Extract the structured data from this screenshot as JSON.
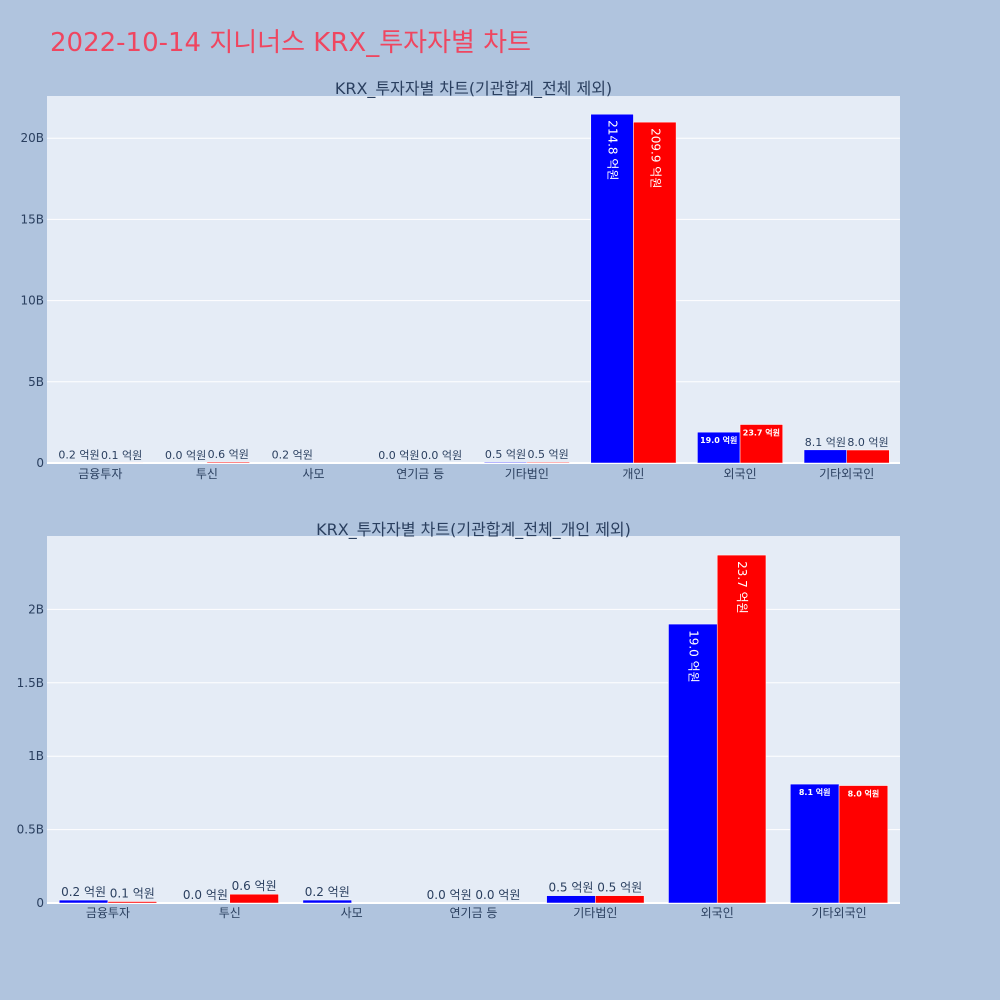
{
  "page_title": "2022-10-14 지니너스 KRX_투자자별 차트",
  "colors": {
    "background": "#b0c4de",
    "plot_bg": "#e5ecf6",
    "title_color": "#ef4660",
    "axis_text": "#2a3f5f",
    "series_1": "#0000ff",
    "series_2": "#ff0000"
  },
  "chart_data": [
    {
      "type": "bar",
      "title": "KRX_투자자별 차트(기관합계_전체 제외)",
      "categories": [
        "금융투자",
        "투신",
        "사모",
        "연기금 등",
        "기타법인",
        "개인",
        "외국인",
        "기타외국인"
      ],
      "series": [
        {
          "values": [
            20000000,
            0,
            20000000,
            0,
            50000000,
            21480000000,
            1900000000,
            810000000
          ],
          "labels": [
            "0.2 억원",
            "0.0 억원",
            "0.2 억원",
            "0.0 억원",
            "0.5 억원",
            "214.8 억원",
            "19.0 억원",
            "8.1 억원"
          ]
        },
        {
          "values": [
            10000000,
            60000000,
            0,
            0,
            50000000,
            20990000000,
            2370000000,
            800000000
          ],
          "labels": [
            "0.1 억원",
            "0.6 억원",
            "",
            "0.0 억원",
            "0.5 억원",
            "209.9 억원",
            "23.7 억원",
            "8.0 억원"
          ]
        }
      ],
      "ylim": [
        0,
        22600000000
      ],
      "yticks": [
        0,
        5000000000,
        10000000000,
        15000000000,
        20000000000
      ],
      "ytick_labels": [
        "0",
        "5B",
        "10B",
        "15B",
        "20B"
      ],
      "grid": true
    },
    {
      "type": "bar",
      "title": "KRX_투자자별 차트(기관합계_전체_개인 제외)",
      "categories": [
        "금융투자",
        "투신",
        "사모",
        "연기금 등",
        "기타법인",
        "외국인",
        "기타외국인"
      ],
      "series": [
        {
          "values": [
            20000000,
            0,
            20000000,
            0,
            50000000,
            1900000000,
            810000000
          ],
          "labels": [
            "0.2 억원",
            "0.0 억원",
            "0.2 억원",
            "0.0 억원",
            "0.5 억원",
            "19.0 억원",
            "8.1 억원"
          ]
        },
        {
          "values": [
            10000000,
            60000000,
            0,
            0,
            50000000,
            2370000000,
            800000000
          ],
          "labels": [
            "0.1 억원",
            "0.6 억원",
            "",
            "0.0 억원",
            "0.5 억원",
            "23.7 억원",
            "8.0 억원"
          ]
        }
      ],
      "ylim": [
        0,
        2500000000
      ],
      "yticks": [
        0,
        500000000,
        1000000000,
        1500000000,
        2000000000
      ],
      "ytick_labels": [
        "0",
        "0.5B",
        "1B",
        "1.5B",
        "2B"
      ],
      "grid": true
    }
  ]
}
